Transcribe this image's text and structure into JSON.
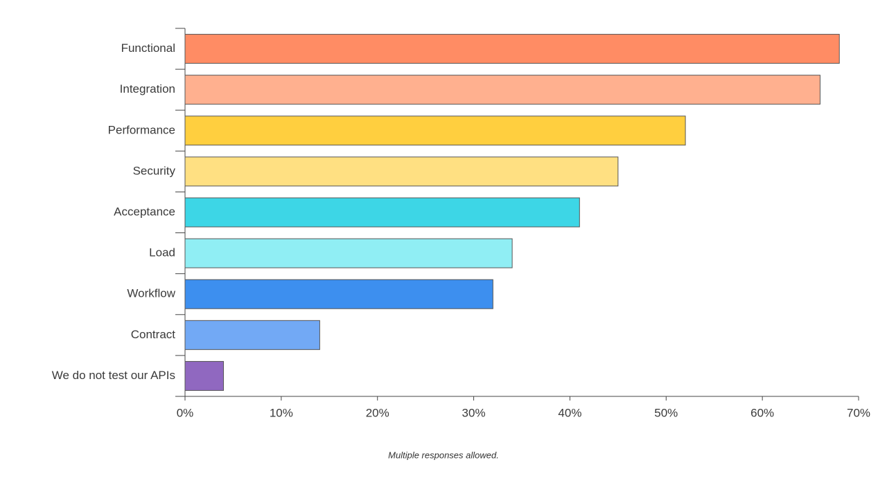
{
  "chart_data": {
    "type": "bar",
    "orientation": "horizontal",
    "categories": [
      "Functional",
      "Integration",
      "Performance",
      "Security",
      "Acceptance",
      "Load",
      "Workflow",
      "Contract",
      "We do not test our APIs"
    ],
    "values": [
      68,
      66,
      52,
      45,
      41,
      34,
      32,
      14,
      4
    ],
    "colors": [
      "#ff8c64",
      "#ffb08f",
      "#ffcf3f",
      "#ffe082",
      "#3dd6e6",
      "#90eef4",
      "#3d8fef",
      "#72a9f5",
      "#9068c0"
    ],
    "xlim": [
      0,
      70
    ],
    "xticks": [
      {
        "value": 0,
        "label": "0%"
      },
      {
        "value": 10,
        "label": "10%"
      },
      {
        "value": 20,
        "label": "20%"
      },
      {
        "value": 30,
        "label": "30%"
      },
      {
        "value": 40,
        "label": "40%"
      },
      {
        "value": 50,
        "label": "50%"
      },
      {
        "value": 60,
        "label": "60%"
      },
      {
        "value": 70,
        "label": "70%"
      }
    ],
    "footnote": "Multiple responses allowed."
  }
}
